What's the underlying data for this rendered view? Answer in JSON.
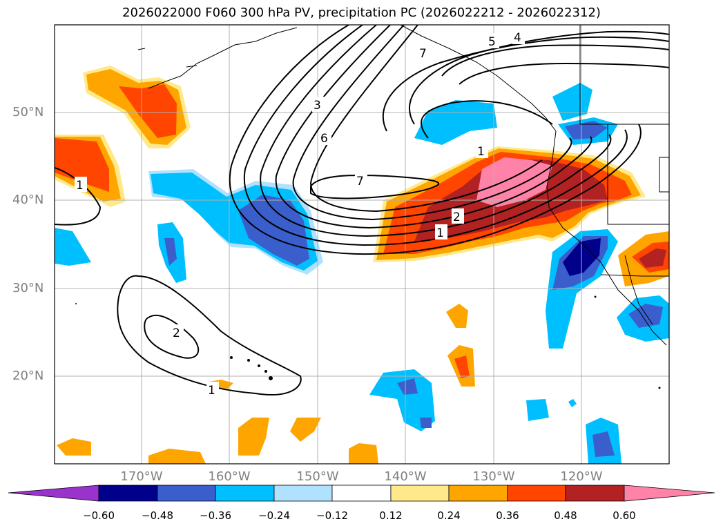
{
  "title": "2026022000 F060 300 hPa PV, precipitation PC (2026022212 - 2026022312)",
  "lat_labels": [
    "50°N",
    "40°N",
    "30°N",
    "20°N"
  ],
  "lon_labels": [
    "170°W",
    "160°W",
    "150°W",
    "140°W",
    "130°W",
    "120°W"
  ],
  "contour_labels": [
    "3",
    "6",
    "7",
    "5",
    "4",
    "7",
    "1",
    "2",
    "1",
    "2",
    "1",
    "1"
  ],
  "colorbar": {
    "ticks": [
      "−0.60",
      "−0.48",
      "−0.36",
      "−0.24",
      "−0.12",
      "0.12",
      "0.24",
      "0.36",
      "0.48",
      "0.60"
    ],
    "colors": [
      "#9933cc",
      "#00008b",
      "#3a5fcd",
      "#00bfff",
      "#b0e2ff",
      "#ffffff",
      "#ffe98a",
      "#ffa500",
      "#ff4500",
      "#b22222",
      "#ff83a8"
    ]
  }
}
